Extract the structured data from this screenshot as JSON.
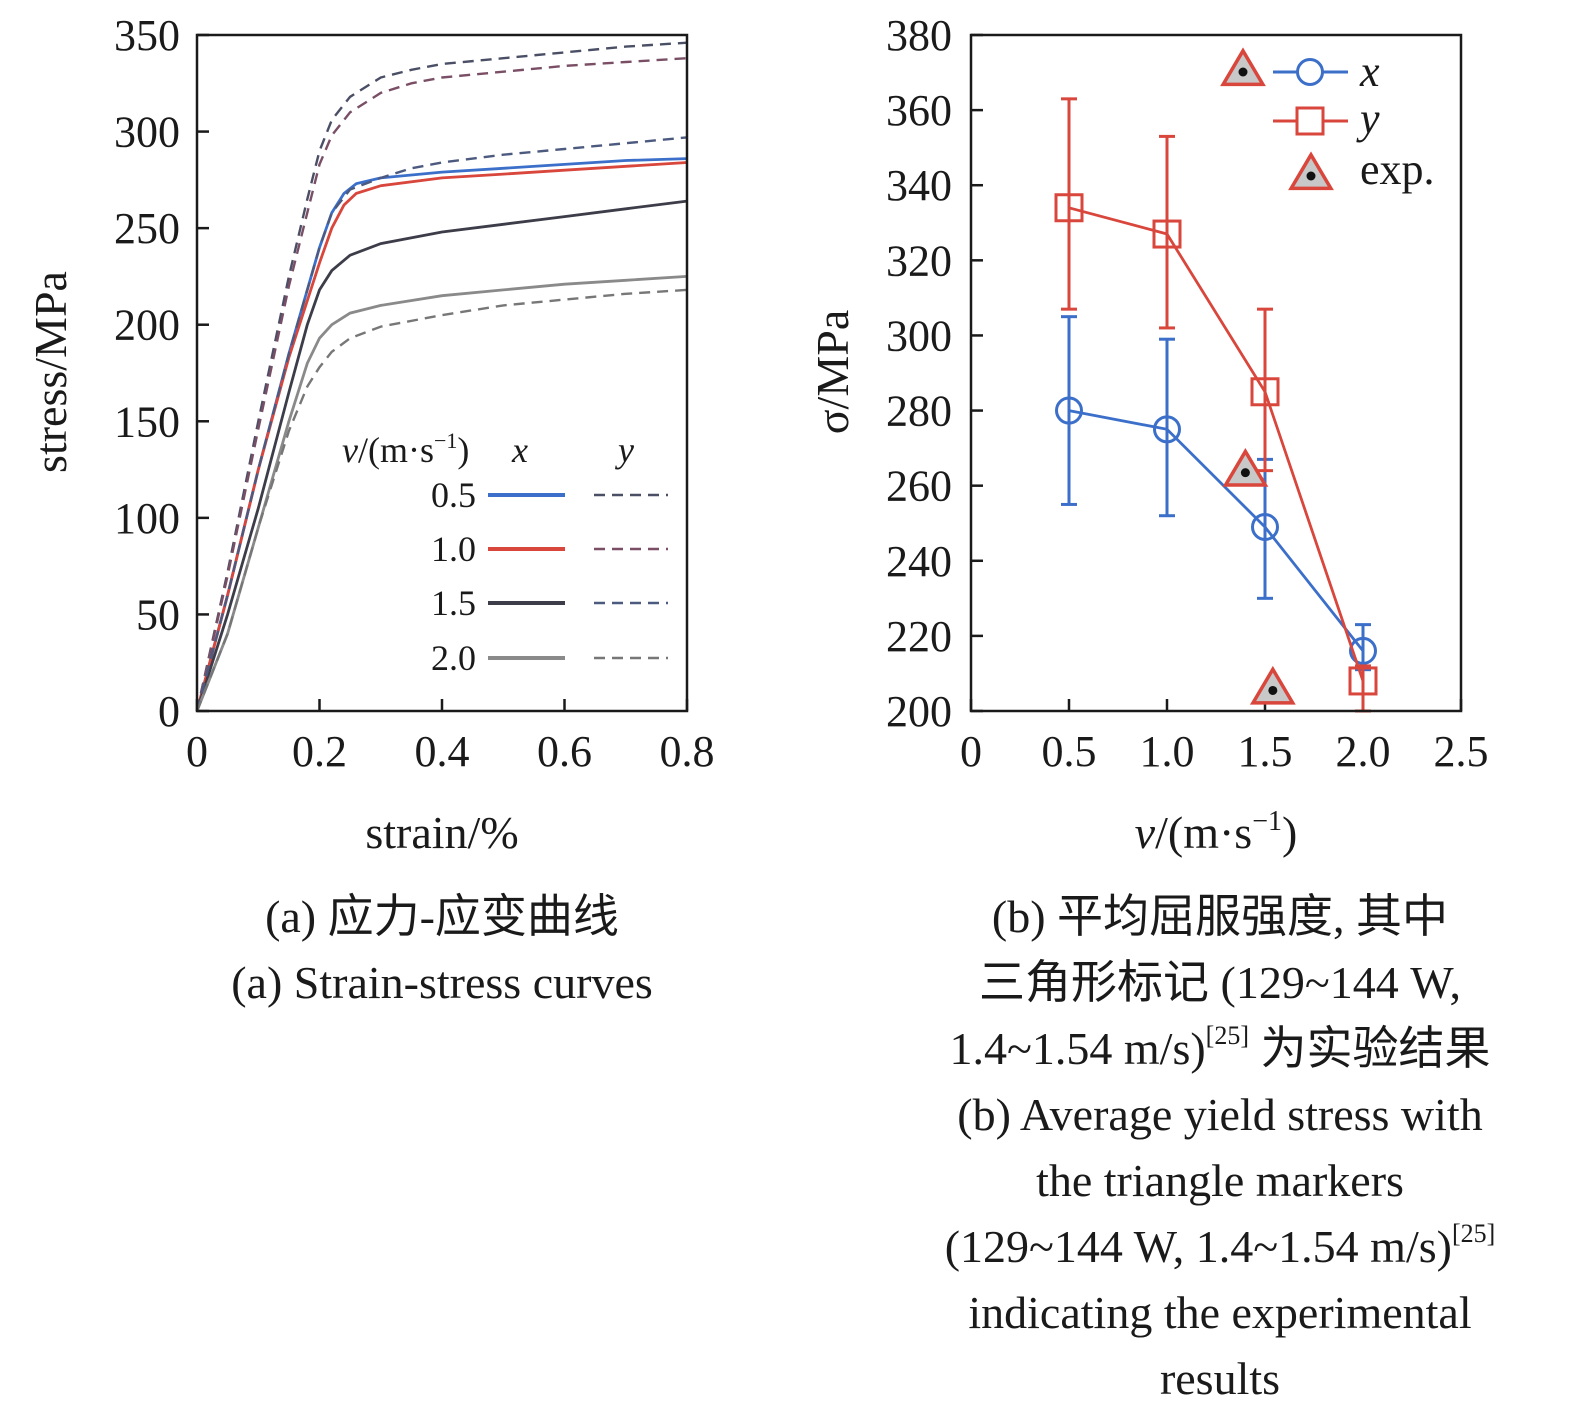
{
  "chart_data": [
    {
      "type": "line",
      "panel": "a",
      "xlabel": "strain/%",
      "ylabel": "stress/MPa",
      "xlim": [
        0,
        0.8
      ],
      "ylim": [
        0,
        350
      ],
      "xticks": [
        "0",
        "0.2",
        "0.4",
        "0.6",
        "0.8"
      ],
      "yticks": [
        "0",
        "50",
        "100",
        "150",
        "200",
        "250",
        "300",
        "350"
      ],
      "legend": {
        "title_v": "v",
        "title_unit": "/(m·s",
        "title_sup": "−1",
        "title_close": ")",
        "col_x": "x",
        "col_y": "y",
        "placement": "lower-right"
      },
      "series": [
        {
          "name": "0.5",
          "component": "x",
          "color": "#3b6fc9",
          "dash": false,
          "points": [
            [
              0,
              0
            ],
            [
              0.05,
              60
            ],
            [
              0.1,
              125
            ],
            [
              0.15,
              185
            ],
            [
              0.2,
              240
            ],
            [
              0.22,
              258
            ],
            [
              0.24,
              268
            ],
            [
              0.26,
              273
            ],
            [
              0.3,
              276
            ],
            [
              0.4,
              279
            ],
            [
              0.5,
              281
            ],
            [
              0.6,
              283
            ],
            [
              0.7,
              285
            ],
            [
              0.8,
              286
            ]
          ]
        },
        {
          "name": "1.0",
          "component": "x",
          "color": "#d8463c",
          "dash": false,
          "points": [
            [
              0,
              0
            ],
            [
              0.05,
              60
            ],
            [
              0.1,
              125
            ],
            [
              0.15,
              183
            ],
            [
              0.2,
              232
            ],
            [
              0.22,
              250
            ],
            [
              0.24,
              262
            ],
            [
              0.26,
              268
            ],
            [
              0.3,
              272
            ],
            [
              0.4,
              276
            ],
            [
              0.5,
              278
            ],
            [
              0.6,
              280
            ],
            [
              0.7,
              282
            ],
            [
              0.8,
              284
            ]
          ]
        },
        {
          "name": "1.5",
          "component": "x",
          "color": "#3d3d4a",
          "dash": false,
          "points": [
            [
              0,
              0
            ],
            [
              0.05,
              50
            ],
            [
              0.1,
              105
            ],
            [
              0.15,
              165
            ],
            [
              0.18,
              200
            ],
            [
              0.2,
              218
            ],
            [
              0.22,
              228
            ],
            [
              0.25,
              236
            ],
            [
              0.3,
              242
            ],
            [
              0.4,
              248
            ],
            [
              0.5,
              252
            ],
            [
              0.6,
              256
            ],
            [
              0.7,
              260
            ],
            [
              0.8,
              264
            ]
          ]
        },
        {
          "name": "2.0",
          "component": "x",
          "color": "#8a8a8a",
          "dash": false,
          "points": [
            [
              0,
              0
            ],
            [
              0.05,
              40
            ],
            [
              0.1,
              95
            ],
            [
              0.15,
              150
            ],
            [
              0.18,
              180
            ],
            [
              0.2,
              193
            ],
            [
              0.22,
              200
            ],
            [
              0.25,
              206
            ],
            [
              0.3,
              210
            ],
            [
              0.4,
              215
            ],
            [
              0.5,
              218
            ],
            [
              0.6,
              221
            ],
            [
              0.7,
              223
            ],
            [
              0.8,
              225
            ]
          ]
        },
        {
          "name": "0.5",
          "component": "y",
          "color": "#4a4f66",
          "dash": true,
          "points": [
            [
              0,
              0
            ],
            [
              0.05,
              72
            ],
            [
              0.1,
              150
            ],
            [
              0.15,
              225
            ],
            [
              0.18,
              265
            ],
            [
              0.2,
              290
            ],
            [
              0.22,
              306
            ],
            [
              0.25,
              318
            ],
            [
              0.3,
              328
            ],
            [
              0.35,
              332
            ],
            [
              0.4,
              335
            ],
            [
              0.5,
              338
            ],
            [
              0.6,
              341
            ],
            [
              0.7,
              344
            ],
            [
              0.8,
              346
            ]
          ]
        },
        {
          "name": "1.0",
          "component": "y",
          "color": "#7a4f66",
          "dash": true,
          "points": [
            [
              0,
              0
            ],
            [
              0.05,
              70
            ],
            [
              0.1,
              146
            ],
            [
              0.15,
              220
            ],
            [
              0.18,
              258
            ],
            [
              0.2,
              283
            ],
            [
              0.22,
              298
            ],
            [
              0.25,
              310
            ],
            [
              0.3,
              320
            ],
            [
              0.35,
              325
            ],
            [
              0.4,
              328
            ],
            [
              0.5,
              331
            ],
            [
              0.6,
              334
            ],
            [
              0.7,
              336
            ],
            [
              0.8,
              338
            ]
          ]
        },
        {
          "name": "1.5",
          "component": "y",
          "color": "#4d5a80",
          "dash": true,
          "points": [
            [
              0,
              0
            ],
            [
              0.05,
              60
            ],
            [
              0.1,
              125
            ],
            [
              0.15,
              185
            ],
            [
              0.2,
              240
            ],
            [
              0.22,
              258
            ],
            [
              0.25,
              270
            ],
            [
              0.3,
              276
            ],
            [
              0.35,
              281
            ],
            [
              0.4,
              284
            ],
            [
              0.5,
              288
            ],
            [
              0.6,
              291
            ],
            [
              0.7,
              294
            ],
            [
              0.8,
              297
            ]
          ]
        },
        {
          "name": "2.0",
          "component": "y",
          "color": "#777777",
          "dash": true,
          "points": [
            [
              0,
              0
            ],
            [
              0.05,
              40
            ],
            [
              0.1,
              95
            ],
            [
              0.15,
              145
            ],
            [
              0.18,
              168
            ],
            [
              0.2,
              178
            ],
            [
              0.22,
              186
            ],
            [
              0.25,
              193
            ],
            [
              0.3,
              199
            ],
            [
              0.4,
              205
            ],
            [
              0.5,
              210
            ],
            [
              0.6,
              213
            ],
            [
              0.7,
              216
            ],
            [
              0.8,
              218
            ]
          ]
        }
      ]
    },
    {
      "type": "line",
      "panel": "b",
      "xlabel_v": "v",
      "xlabel_unit": "/(m·s",
      "xlabel_sup": "−1",
      "xlabel_close": ")",
      "ylabel": "σ/MPa",
      "xlim": [
        0,
        2.5
      ],
      "ylim": [
        200,
        380
      ],
      "xticks": [
        "0",
        "0.5",
        "1.0",
        "1.5",
        "2.0",
        "2.5"
      ],
      "yticks": [
        "200",
        "220",
        "240",
        "260",
        "280",
        "300",
        "320",
        "340",
        "360",
        "380"
      ],
      "legend": {
        "placement": "top-right"
      },
      "series": [
        {
          "name": "x",
          "color": "#3b6fc9",
          "marker": "circle",
          "x": [
            0.5,
            1.0,
            1.5,
            2.0
          ],
          "y": [
            280,
            275,
            249,
            216
          ],
          "err_low": [
            255,
            252,
            230,
            211
          ],
          "err_high": [
            305,
            299,
            267,
            223
          ]
        },
        {
          "name": "y",
          "color": "#d8463c",
          "marker": "square",
          "x": [
            0.5,
            1.0,
            1.5,
            2.0
          ],
          "y": [
            334,
            327,
            285,
            208
          ],
          "err_low": [
            307,
            302,
            264,
            200
          ],
          "err_high": [
            363,
            353,
            307,
            212
          ]
        },
        {
          "name": "exp.",
          "color": "#d8463c",
          "marker": "triangle",
          "x": [
            1.4,
            1.54
          ],
          "y": [
            264,
            206
          ]
        }
      ]
    }
  ],
  "captions": {
    "a_cn": "(a) 应力-应变曲线",
    "a_en": "(a) Strain-stress curves",
    "b_cn_1": "(b) 平均屈服强度, 其中",
    "b_cn_2": "三角形标记 (129~144 W,",
    "b_cn_3_main": "1.4~1.54 m/s)",
    "b_cn_3_ref": "[25]",
    "b_cn_3_tail": " 为实验结果",
    "b_en_1": "(b) Average yield stress with",
    "b_en_2": "the triangle markers",
    "b_en_3_main": "(129~144 W, 1.4~1.54 m/s)",
    "b_en_3_ref": "[25]",
    "b_en_4": "indicating the experimental",
    "b_en_5": "results"
  }
}
